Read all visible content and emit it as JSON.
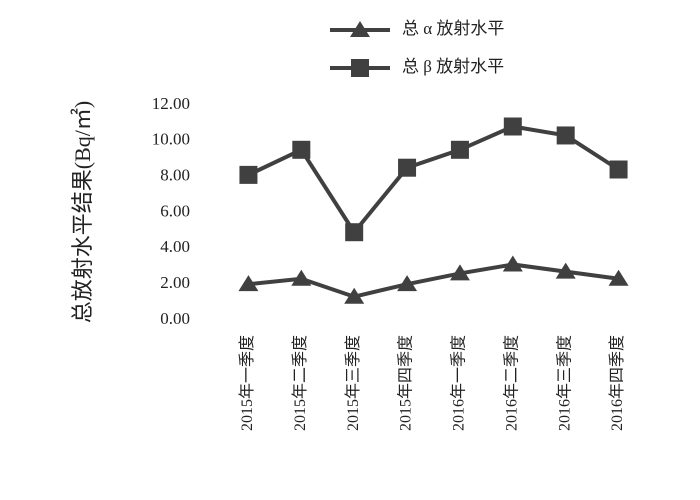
{
  "chart_data": {
    "type": "line",
    "y_label": "总放射水平结果(Bq/㎡)",
    "categories": [
      "2015年一季度",
      "2015年二季度",
      "2015年三季度",
      "2015年四季度",
      "2016年一季度",
      "2016年二季度",
      "2016年三季度",
      "2016年四季度"
    ],
    "series": [
      {
        "name": "总 α 放射水平",
        "color": "#404040",
        "marker": "triangle",
        "values": [
          2.0,
          2.3,
          1.3,
          2.0,
          2.6,
          3.1,
          2.7,
          2.3
        ]
      },
      {
        "name": "总 β 放射水平",
        "color": "#404040",
        "marker": "square",
        "values": [
          8.1,
          9.5,
          4.9,
          8.5,
          9.5,
          10.8,
          10.3,
          8.4
        ]
      }
    ],
    "ylim": [
      0,
      12
    ],
    "yticks": [
      {
        "value": 0,
        "label": "0.00"
      },
      {
        "value": 2,
        "label": "2.00"
      },
      {
        "value": 4,
        "label": "4.00"
      },
      {
        "value": 6,
        "label": "6.00"
      },
      {
        "value": 8,
        "label": "8.00"
      },
      {
        "value": 10,
        "label": "10.00"
      },
      {
        "value": 12,
        "label": "12.00"
      }
    ],
    "grid": false,
    "legend": "top"
  }
}
